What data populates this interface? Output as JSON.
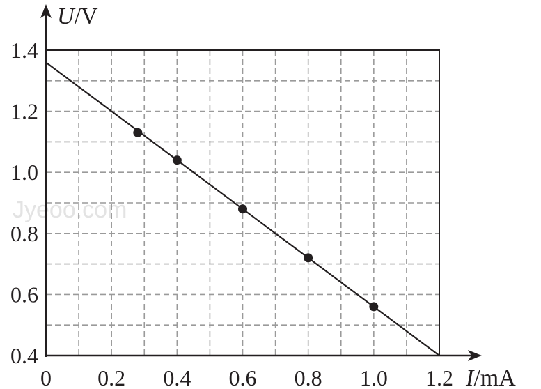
{
  "chart_data": {
    "type": "scatter",
    "xlabel": {
      "symbol": "I",
      "unit": "/mA"
    },
    "ylabel": {
      "symbol": "U",
      "unit": "/V"
    },
    "xlim": [
      0,
      1.2
    ],
    "ylim": [
      0.4,
      1.4
    ],
    "grid": "dashed",
    "x_ticks": [
      0,
      0.2,
      0.4,
      0.6,
      0.8,
      1.0,
      1.2
    ],
    "x_tick_labels": [
      "0",
      "0.2",
      "0.4",
      "0.6",
      "0.8",
      "1.0",
      "1.2"
    ],
    "y_ticks": [
      0.4,
      0.6,
      0.8,
      1.0,
      1.2,
      1.4
    ],
    "y_tick_labels": [
      "0.4",
      "0.6",
      "0.8",
      "1.0",
      "1.2",
      "1.4"
    ],
    "points": [
      {
        "x": 0.28,
        "y": 1.13
      },
      {
        "x": 0.4,
        "y": 1.04
      },
      {
        "x": 0.6,
        "y": 0.88
      },
      {
        "x": 0.8,
        "y": 0.72
      },
      {
        "x": 1.0,
        "y": 0.56
      }
    ],
    "fit_line": {
      "x": [
        0,
        1.2
      ],
      "y": [
        1.36,
        0.4
      ]
    }
  },
  "watermark": "Jyeoo.com"
}
